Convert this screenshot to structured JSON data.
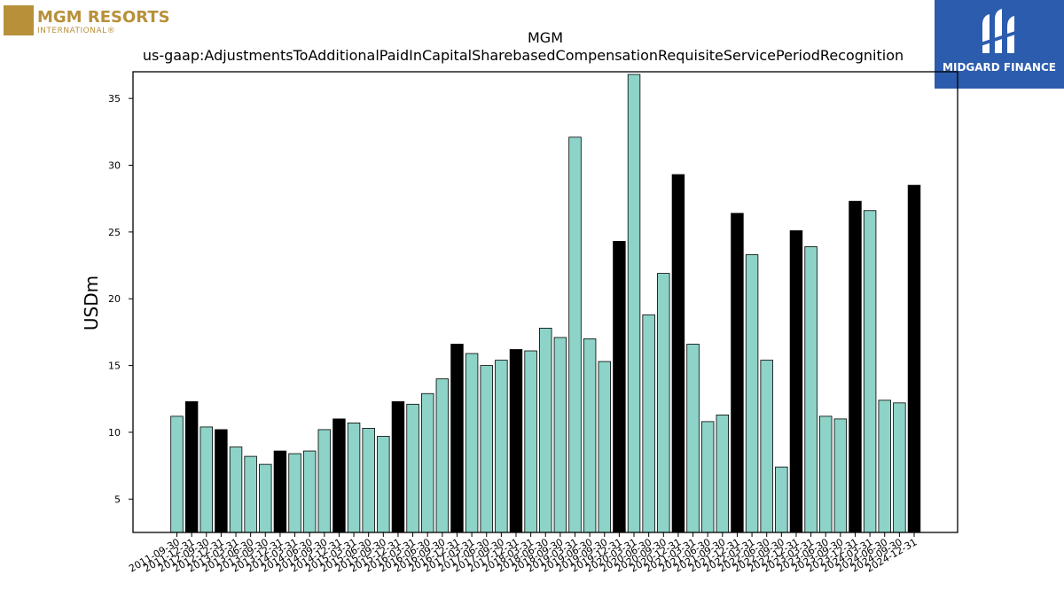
{
  "logos": {
    "left_name": "MGM RESORTS",
    "left_sub": "INTERNATIONAL®",
    "right_name": "MIDGARD FINANCE"
  },
  "colors": {
    "bar_default": "#8dd3c7",
    "bar_q4": "#000000",
    "brand_gold": "#b8903a",
    "brand_blue": "#2c5cad"
  },
  "chart_data": {
    "type": "bar",
    "title": "MGM",
    "subtitle": "us-gaap:AdjustmentsToAdditionalPaidInCapitalSharebasedCompensationRequisiteServicePeriodRecognition",
    "xlabel": "",
    "ylabel": "USDm",
    "ylim": [
      2.5,
      37
    ],
    "yticks": [
      5,
      10,
      15,
      20,
      25,
      30,
      35
    ],
    "grid": false,
    "legend": "none",
    "categories": [
      "2011-09-30",
      "2011-12-31",
      "2012-09-30",
      "2012-12-31",
      "2013-03-31",
      "2013-06-30",
      "2013-09-30",
      "2013-12-31",
      "2014-03-31",
      "2014-06-30",
      "2014-09-30",
      "2014-12-31",
      "2015-03-31",
      "2015-06-30",
      "2015-09-30",
      "2015-12-31",
      "2016-03-31",
      "2016-06-30",
      "2016-09-30",
      "2016-12-31",
      "2017-03-31",
      "2017-06-30",
      "2017-09-30",
      "2017-12-31",
      "2018-03-31",
      "2018-06-30",
      "2018-09-30",
      "2019-03-31",
      "2019-06-30",
      "2019-09-30",
      "2019-12-31",
      "2020-03-31",
      "2020-06-30",
      "2020-09-30",
      "2020-12-31",
      "2021-03-31",
      "2021-06-30",
      "2021-09-30",
      "2021-12-31",
      "2022-03-31",
      "2022-06-30",
      "2022-09-30",
      "2022-12-31",
      "2023-03-31",
      "2023-06-30",
      "2023-09-30",
      "2023-12-31",
      "2024-03-31",
      "2024-06-30",
      "2024-09-30",
      "2024-12-31"
    ],
    "values": [
      11.2,
      12.3,
      10.4,
      10.2,
      8.9,
      8.2,
      7.6,
      8.6,
      8.4,
      8.6,
      10.2,
      11.0,
      10.7,
      10.3,
      9.7,
      12.3,
      12.1,
      12.9,
      14.0,
      16.6,
      15.9,
      15.0,
      15.4,
      16.2,
      16.1,
      17.8,
      17.1,
      32.1,
      17.0,
      15.3,
      24.3,
      36.8,
      18.8,
      21.9,
      29.3,
      16.6,
      10.8,
      11.3,
      26.4,
      23.3,
      15.4,
      7.4,
      25.1,
      23.9,
      11.2,
      11.0,
      27.3,
      26.6,
      12.4,
      12.2,
      28.5
    ],
    "highlight": [
      false,
      true,
      false,
      true,
      false,
      false,
      false,
      true,
      false,
      false,
      false,
      true,
      false,
      false,
      false,
      true,
      false,
      false,
      false,
      true,
      false,
      false,
      false,
      true,
      false,
      false,
      false,
      false,
      false,
      false,
      true,
      false,
      false,
      false,
      true,
      false,
      false,
      false,
      true,
      false,
      false,
      false,
      true,
      false,
      false,
      false,
      true,
      false,
      false,
      false,
      true
    ]
  }
}
